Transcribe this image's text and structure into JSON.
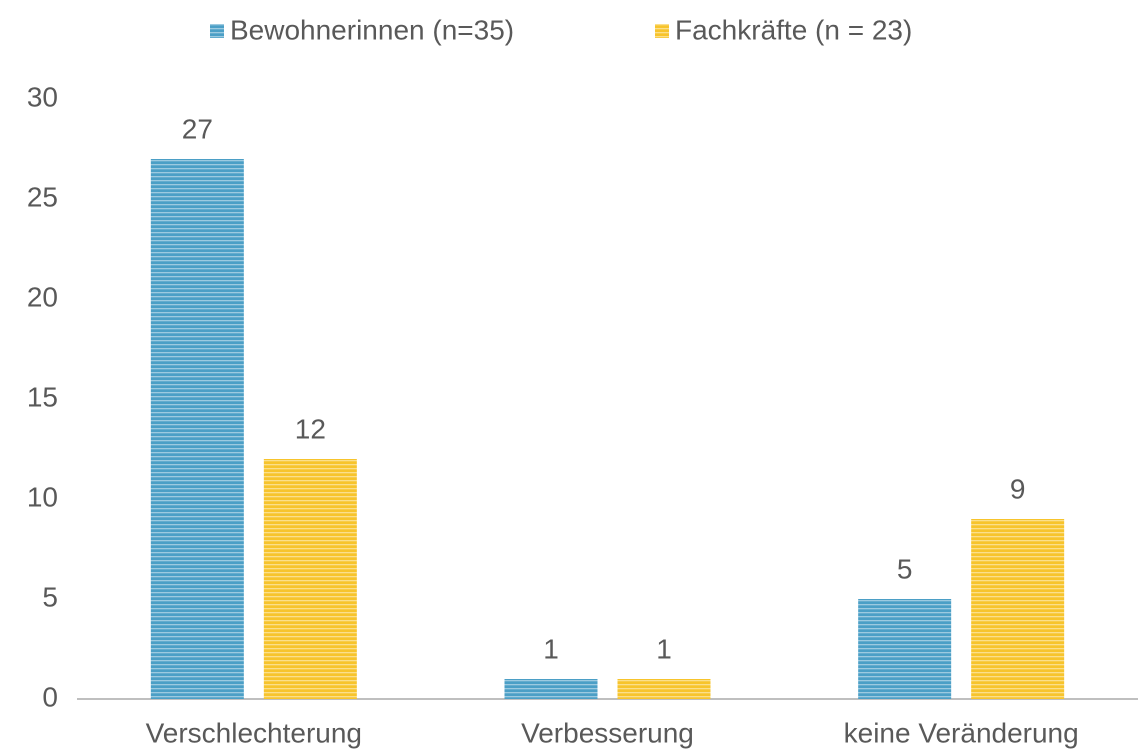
{
  "chart_data": {
    "type": "bar",
    "categories": [
      "Verschlechterung",
      "Verbesserung",
      "keine Veränderung"
    ],
    "series": [
      {
        "name": "Bewohnerinnen (n=35)",
        "color": "#4b9fc6",
        "values": [
          27,
          1,
          5
        ]
      },
      {
        "name": "Fachkräfte (n = 23)",
        "color": "#f7c42c",
        "values": [
          12,
          1,
          9
        ]
      }
    ],
    "ylim": [
      0,
      30
    ],
    "yticks": [
      0,
      5,
      10,
      15,
      20,
      25,
      30
    ],
    "grid": false,
    "legend": "top"
  }
}
